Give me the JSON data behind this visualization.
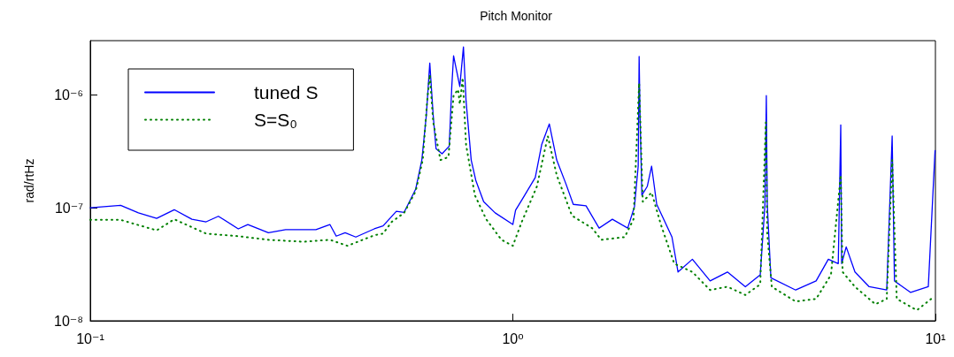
{
  "chart_data": {
    "type": "line",
    "title": "Pitch Monitor",
    "ylabel": "rad/rtHz",
    "log": "xy",
    "grid": false,
    "legend": "top left",
    "marker": "none",
    "xlim": [
      0.1,
      10
    ],
    "xticks": [
      {
        "value": 0.1,
        "label": "10⁻¹"
      },
      {
        "value": 1,
        "label": "10⁰"
      },
      {
        "value": 10,
        "label": "10¹"
      }
    ],
    "ylim": [
      1e-08,
      3e-06
    ],
    "yticks": [
      {
        "value": 1e-08,
        "label": "10⁻⁸"
      },
      {
        "value": 1e-07,
        "label": "10⁻⁷"
      },
      {
        "value": 1e-06,
        "label": "10⁻⁶"
      }
    ],
    "series": [
      {
        "name": "tuned S",
        "color": "#0000ff",
        "line_style": "solid",
        "x": [
          0.1,
          0.118,
          0.13,
          0.1436,
          0.158,
          0.174,
          0.188,
          0.201,
          0.224,
          0.236,
          0.264,
          0.29,
          0.319,
          0.342,
          0.369,
          0.382,
          0.401,
          0.425,
          0.47,
          0.493,
          0.53,
          0.553,
          0.589,
          0.609,
          0.624,
          0.636,
          0.648,
          0.658,
          0.68,
          0.707,
          0.717,
          0.724,
          0.749,
          0.764,
          0.775,
          0.797,
          0.817,
          0.853,
          0.908,
          1.0,
          1.015,
          1.05,
          1.13,
          1.17,
          1.22,
          1.27,
          1.335,
          1.39,
          1.49,
          1.6,
          1.72,
          1.87,
          1.94,
          1.98,
          1.99,
          2.0,
          2.02,
          2.08,
          2.13,
          2.19,
          2.29,
          2.38,
          2.46,
          2.66,
          2.93,
          3.22,
          3.55,
          3.85,
          3.95,
          3.98,
          4.0,
          4.08,
          4.67,
          5.22,
          5.58,
          5.89,
          5.97,
          6.0,
          6.15,
          6.45,
          6.97,
          7.67,
          7.9,
          8.0,
          8.74,
          9.62,
          9.98
        ],
        "values": [
          1e-07,
          1.05e-07,
          9e-08,
          8.05e-08,
          9.6e-08,
          7.9e-08,
          7.5e-08,
          8.4e-08,
          6.5e-08,
          7.1e-08,
          6e-08,
          6.4e-08,
          6.4e-08,
          6.4e-08,
          7.1e-08,
          5.6e-08,
          6e-08,
          5.5e-08,
          6.5e-08,
          6.9e-08,
          9.3e-08,
          9.1e-08,
          1.46e-07,
          2.64e-07,
          6.5e-07,
          1.9e-06,
          6.5e-07,
          3.33e-07,
          3e-07,
          3.5e-07,
          1.18e-06,
          2.2e-06,
          1.18e-06,
          2.64e-06,
          8.8e-07,
          2.64e-07,
          1.75e-07,
          1.13e-07,
          9e-08,
          7.1e-08,
          9.5e-08,
          1.17e-07,
          1.85e-07,
          3.6e-07,
          5.5e-07,
          2.64e-07,
          1.63e-07,
          1.07e-07,
          1.04e-07,
          6.6e-08,
          7.9e-08,
          6.6e-08,
          1.02e-07,
          2.33e-07,
          2.17e-06,
          6.5e-07,
          1.29e-07,
          1.54e-07,
          2.33e-07,
          1.07e-07,
          7.5e-08,
          5.5e-08,
          2.7e-08,
          3.5e-08,
          2.25e-08,
          2.7e-08,
          2e-08,
          2.55e-08,
          1.07e-07,
          9.8e-07,
          1.07e-07,
          2.4e-08,
          1.87e-08,
          2.25e-08,
          3.5e-08,
          3.2e-08,
          5.4e-07,
          3.2e-08,
          4.5e-08,
          2.7e-08,
          2e-08,
          1.87e-08,
          4.3e-07,
          2.25e-08,
          1.78e-08,
          2e-08,
          3.2e-07
        ]
      },
      {
        "name": "S=S₀",
        "color": "#008000",
        "line_style": "dotted",
        "x": [
          0.1,
          0.118,
          0.1436,
          0.158,
          0.188,
          0.224,
          0.264,
          0.319,
          0.369,
          0.406,
          0.47,
          0.493,
          0.517,
          0.553,
          0.589,
          0.612,
          0.627,
          0.636,
          0.648,
          0.674,
          0.704,
          0.724,
          0.742,
          0.749,
          0.761,
          0.775,
          0.813,
          0.865,
          0.94,
          1.0,
          1.05,
          1.14,
          1.21,
          1.27,
          1.38,
          1.54,
          1.62,
          1.84,
          1.93,
          1.99,
          2.03,
          2.13,
          2.24,
          2.41,
          2.66,
          2.93,
          3.22,
          3.55,
          3.85,
          3.97,
          4.0,
          4.1,
          4.67,
          5.22,
          5.66,
          5.97,
          6.03,
          6.45,
          7.21,
          7.67,
          7.9,
          8.1,
          9.04,
          9.77
        ],
        "values": [
          7.8e-08,
          7.8e-08,
          6.3e-08,
          7.9e-08,
          5.9e-08,
          5.6e-08,
          5.2e-08,
          5e-08,
          5.2e-08,
          4.6e-08,
          5.7e-08,
          5.9e-08,
          7.5e-08,
          9e-08,
          1.4e-07,
          2.64e-07,
          8.8e-07,
          1.5e-06,
          5.7e-07,
          2.64e-07,
          2.8e-07,
          9.8e-07,
          1.11e-06,
          8.2e-07,
          1.41e-06,
          3.6e-07,
          1.29e-07,
          7.9e-08,
          5.2e-08,
          4.6e-08,
          7.5e-08,
          1.54e-07,
          4.3e-07,
          1.94e-07,
          8.5e-08,
          6.6e-08,
          5.2e-08,
          5.5e-08,
          7.9e-08,
          1.26e-06,
          1.13e-07,
          1.36e-07,
          7.1e-08,
          3.2e-08,
          2.7e-08,
          1.87e-08,
          2e-08,
          1.69e-08,
          2.1e-08,
          5.7e-07,
          5.9e-08,
          2e-08,
          1.48e-08,
          1.56e-08,
          2.55e-08,
          1.94e-07,
          2.7e-08,
          2e-08,
          1.4e-08,
          1.56e-08,
          2.64e-07,
          1.56e-08,
          1.24e-08,
          1.56e-08
        ]
      }
    ]
  }
}
